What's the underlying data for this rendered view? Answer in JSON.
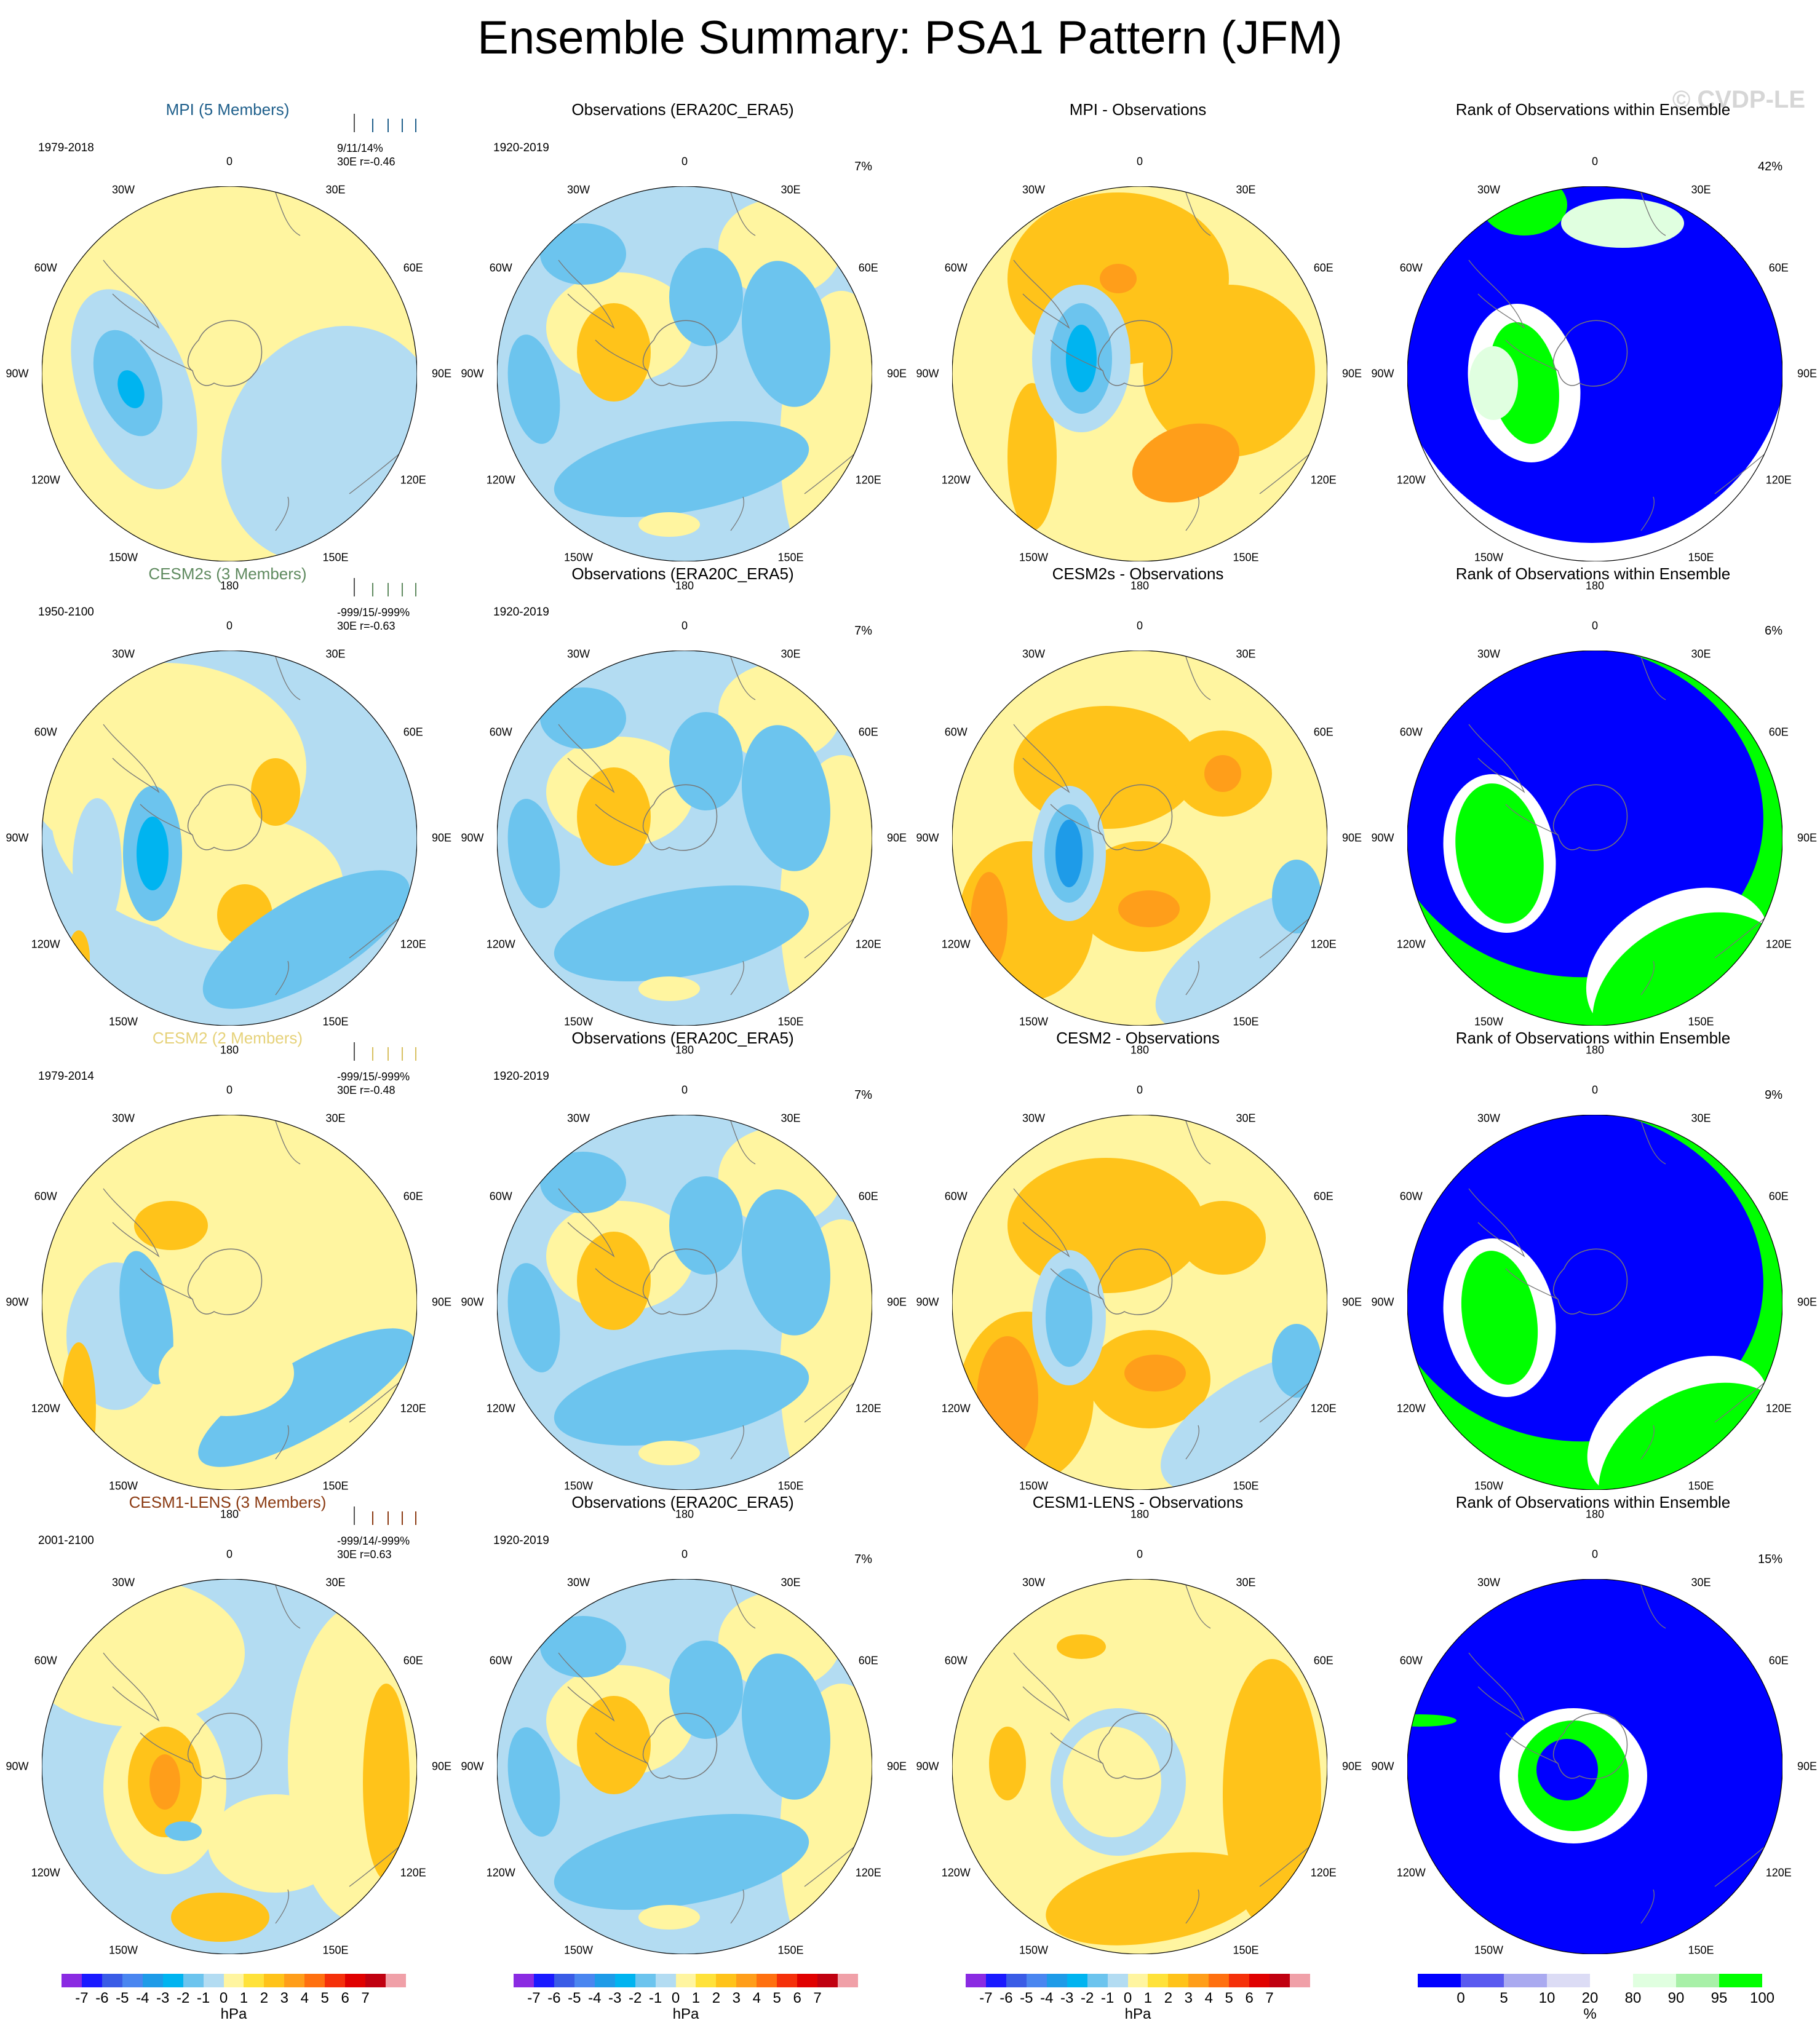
{
  "title": "Ensemble Summary: PSA1 Pattern (JFM)",
  "watermark": "© CVDP-LE",
  "lon_labels": [
    "0",
    "30E",
    "60E",
    "90E",
    "120E",
    "150E",
    "180",
    "150W",
    "120W",
    "90W",
    "60W",
    "30W"
  ],
  "rows": [
    {
      "model": {
        "title": "MPI (5 Members)",
        "title_color": "#1f5f8b",
        "years": "1979-2018",
        "stats1": "9/11/14%",
        "stats2": "30E   r=-0.46",
        "tick_color": "#1f5f8b"
      },
      "obs": {
        "title": "Observations (ERA20C_ERA5)",
        "years": "1920-2019",
        "pct": "7%"
      },
      "diff": {
        "title": "MPI - Observations"
      },
      "rank": {
        "title": "Rank of Observations within Ensemble",
        "pct": "42%"
      }
    },
    {
      "model": {
        "title": "CESM2s (3 Members)",
        "title_color": "#5f8a5f",
        "years": "1950-2100",
        "stats1": "-999/15/-999%",
        "stats2": "30E  r=-0.63",
        "tick_color": "#5f8a5f"
      },
      "obs": {
        "title": "Observations (ERA20C_ERA5)",
        "years": "1920-2019",
        "pct": "7%"
      },
      "diff": {
        "title": "CESM2s - Observations"
      },
      "rank": {
        "title": "Rank of Observations within Ensemble",
        "pct": "6%"
      }
    },
    {
      "model": {
        "title": "CESM2 (2 Members)",
        "title_color": "#e6d27a",
        "years": "1979-2014",
        "stats1": "-999/15/-999%",
        "stats2": "30E  r=-0.48",
        "tick_color": "#d8c060"
      },
      "obs": {
        "title": "Observations (ERA20C_ERA5)",
        "years": "1920-2019",
        "pct": "7%"
      },
      "diff": {
        "title": "CESM2 - Observations"
      },
      "rank": {
        "title": "Rank of Observations within Ensemble",
        "pct": "9%"
      }
    },
    {
      "model": {
        "title": "CESM1-LENS (3 Members)",
        "title_color": "#8b3a12",
        "years": "2001-2100",
        "stats1": "-999/14/-999%",
        "stats2": "30E  r=0.63",
        "tick_color": "#8b3a12"
      },
      "obs": {
        "title": "Observations (ERA20C_ERA5)",
        "years": "1920-2019",
        "pct": "7%"
      },
      "diff": {
        "title": "CESM1-LENS - Observations"
      },
      "rank": {
        "title": "Rank of Observations within Ensemble",
        "pct": "15%"
      }
    }
  ],
  "colorbar_hpa": {
    "colors": [
      "#8a2be2",
      "#1a1aff",
      "#3a5ce6",
      "#4a86f0",
      "#1e9be8",
      "#00b4f0",
      "#6cc4ee",
      "#b3dcf2",
      "#fff5a0",
      "#ffe23a",
      "#ffc31a",
      "#ff9e1a",
      "#ff7010",
      "#f5300a",
      "#e00000",
      "#c00010",
      "#f0a0a8"
    ],
    "labels": [
      "-7",
      "-6",
      "-5",
      "-4",
      "-3",
      "-2",
      "-1",
      "0",
      "1",
      "2",
      "3",
      "4",
      "5",
      "6",
      "7"
    ],
    "unit": "hPa"
  },
  "colorbar_rank": {
    "colors": [
      "#0000ff",
      "#5a5af0",
      "#aaaaf0",
      "#dcdcf5",
      "#ffffff",
      "#e0ffe0",
      "#a8f0a8",
      "#00ff00"
    ],
    "labels": [
      "0",
      "5",
      "10",
      "20",
      "80",
      "90",
      "95",
      "100"
    ],
    "unit": "%"
  }
}
